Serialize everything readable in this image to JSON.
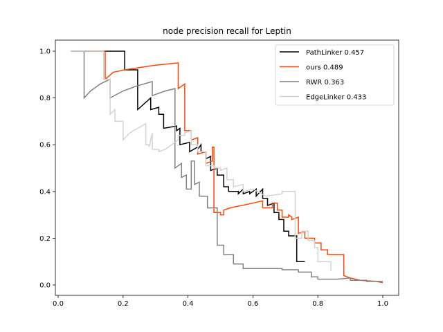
{
  "chart_data": {
    "type": "line",
    "title": "node precision recall for Leptin",
    "xlabel": "",
    "ylabel": "",
    "xlim": [
      0.0,
      1.0
    ],
    "ylim": [
      0.0,
      1.0
    ],
    "xticks": [
      0.0,
      0.2,
      0.4,
      0.6,
      0.8,
      1.0
    ],
    "yticks": [
      0.0,
      0.2,
      0.4,
      0.6,
      0.8,
      1.0
    ],
    "xtick_labels": [
      "0.0",
      "0.2",
      "0.4",
      "0.6",
      "0.8",
      "1.0"
    ],
    "ytick_labels": [
      "0.0",
      "0.2",
      "0.4",
      "0.6",
      "0.8",
      "1.0"
    ],
    "grid": false,
    "legend_position": "top-right",
    "series": [
      {
        "name": "PathLinker 0.457",
        "color": "#000000",
        "points": [
          [
            0.04,
            1.0
          ],
          [
            0.205,
            1.0
          ],
          [
            0.205,
            0.92
          ],
          [
            0.245,
            0.92
          ],
          [
            0.245,
            0.75
          ],
          [
            0.285,
            0.8
          ],
          [
            0.285,
            0.75
          ],
          [
            0.31,
            0.76
          ],
          [
            0.31,
            0.73
          ],
          [
            0.325,
            0.73
          ],
          [
            0.325,
            0.67
          ],
          [
            0.365,
            0.68
          ],
          [
            0.365,
            0.66
          ],
          [
            0.375,
            0.67
          ],
          [
            0.375,
            0.6
          ],
          [
            0.405,
            0.61
          ],
          [
            0.405,
            0.57
          ],
          [
            0.43,
            0.59
          ],
          [
            0.43,
            0.58
          ],
          [
            0.44,
            0.6
          ],
          [
            0.44,
            0.57
          ],
          [
            0.455,
            0.57
          ],
          [
            0.455,
            0.54
          ],
          [
            0.47,
            0.55
          ],
          [
            0.47,
            0.49
          ],
          [
            0.49,
            0.5
          ],
          [
            0.49,
            0.47
          ],
          [
            0.51,
            0.47
          ],
          [
            0.51,
            0.42
          ],
          [
            0.525,
            0.42
          ],
          [
            0.525,
            0.4
          ],
          [
            0.555,
            0.4
          ],
          [
            0.555,
            0.39
          ],
          [
            0.57,
            0.41
          ],
          [
            0.57,
            0.39
          ],
          [
            0.59,
            0.4
          ],
          [
            0.59,
            0.39
          ],
          [
            0.61,
            0.41
          ],
          [
            0.61,
            0.38
          ],
          [
            0.63,
            0.41
          ],
          [
            0.63,
            0.37
          ],
          [
            0.645,
            0.37
          ],
          [
            0.645,
            0.34
          ],
          [
            0.665,
            0.35
          ],
          [
            0.665,
            0.31
          ],
          [
            0.68,
            0.31
          ],
          [
            0.68,
            0.28
          ],
          [
            0.695,
            0.28
          ],
          [
            0.695,
            0.23
          ],
          [
            0.71,
            0.23
          ],
          [
            0.71,
            0.21
          ],
          [
            0.735,
            0.21
          ],
          [
            0.735,
            0.1
          ],
          [
            0.76,
            0.1
          ]
        ]
      },
      {
        "name": "ours 0.489",
        "color": "#ff4500",
        "points": [
          [
            0.04,
            1.0
          ],
          [
            0.145,
            1.0
          ],
          [
            0.145,
            0.88
          ],
          [
            0.17,
            0.91
          ],
          [
            0.205,
            0.92
          ],
          [
            0.25,
            0.93
          ],
          [
            0.3,
            0.94
          ],
          [
            0.37,
            0.95
          ],
          [
            0.37,
            0.84
          ],
          [
            0.39,
            0.86
          ],
          [
            0.39,
            0.66
          ],
          [
            0.41,
            0.66
          ],
          [
            0.41,
            0.62
          ],
          [
            0.43,
            0.63
          ],
          [
            0.43,
            0.56
          ],
          [
            0.455,
            0.57
          ],
          [
            0.455,
            0.52
          ],
          [
            0.475,
            0.53
          ],
          [
            0.475,
            0.59
          ],
          [
            0.48,
            0.59
          ],
          [
            0.48,
            0.31
          ],
          [
            0.5,
            0.31
          ],
          [
            0.5,
            0.3
          ],
          [
            0.51,
            0.3
          ],
          [
            0.51,
            0.32
          ],
          [
            0.53,
            0.33
          ],
          [
            0.6,
            0.35
          ],
          [
            0.63,
            0.36
          ],
          [
            0.63,
            0.33
          ],
          [
            0.66,
            0.33
          ],
          [
            0.66,
            0.35
          ],
          [
            0.675,
            0.35
          ],
          [
            0.675,
            0.32
          ],
          [
            0.69,
            0.32
          ],
          [
            0.69,
            0.29
          ],
          [
            0.71,
            0.29
          ],
          [
            0.71,
            0.3
          ],
          [
            0.72,
            0.29
          ],
          [
            0.72,
            0.28
          ],
          [
            0.74,
            0.29
          ],
          [
            0.74,
            0.22
          ],
          [
            0.76,
            0.23
          ],
          [
            0.76,
            0.2
          ],
          [
            0.79,
            0.2
          ],
          [
            0.79,
            0.18
          ],
          [
            0.81,
            0.18
          ],
          [
            0.81,
            0.15
          ],
          [
            0.83,
            0.15
          ],
          [
            0.83,
            0.13
          ],
          [
            0.88,
            0.13
          ],
          [
            0.88,
            0.04
          ],
          [
            0.9,
            0.03
          ],
          [
            0.93,
            0.02
          ],
          [
            0.98,
            0.015
          ],
          [
            1.0,
            0.01
          ]
        ]
      },
      {
        "name": "RWR 0.363",
        "color": "#808080",
        "points": [
          [
            0.04,
            1.0
          ],
          [
            0.08,
            1.0
          ],
          [
            0.08,
            0.8
          ],
          [
            0.1,
            0.83
          ],
          [
            0.13,
            0.86
          ],
          [
            0.16,
            0.88
          ],
          [
            0.16,
            0.8
          ],
          [
            0.2,
            0.83
          ],
          [
            0.24,
            0.85
          ],
          [
            0.29,
            0.87
          ],
          [
            0.29,
            0.81
          ],
          [
            0.33,
            0.83
          ],
          [
            0.36,
            0.84
          ],
          [
            0.36,
            0.5
          ],
          [
            0.38,
            0.52
          ],
          [
            0.38,
            0.46
          ],
          [
            0.395,
            0.47
          ],
          [
            0.395,
            0.41
          ],
          [
            0.41,
            0.41
          ],
          [
            0.41,
            0.53
          ],
          [
            0.42,
            0.53
          ],
          [
            0.42,
            0.43
          ],
          [
            0.435,
            0.44
          ],
          [
            0.435,
            0.38
          ],
          [
            0.46,
            0.38
          ],
          [
            0.46,
            0.33
          ],
          [
            0.49,
            0.33
          ],
          [
            0.49,
            0.17
          ],
          [
            0.51,
            0.17
          ],
          [
            0.51,
            0.13
          ],
          [
            0.54,
            0.13
          ],
          [
            0.54,
            0.09
          ],
          [
            0.57,
            0.09
          ],
          [
            0.57,
            0.07
          ],
          [
            0.6,
            0.07
          ],
          [
            0.65,
            0.07
          ],
          [
            0.69,
            0.07
          ],
          [
            0.69,
            0.065
          ],
          [
            0.74,
            0.065
          ],
          [
            0.74,
            0.055
          ],
          [
            0.78,
            0.055
          ],
          [
            0.78,
            0.035
          ],
          [
            0.8,
            0.035
          ],
          [
            0.8,
            0.025
          ],
          [
            0.86,
            0.025
          ],
          [
            0.9,
            0.03
          ],
          [
            0.9,
            0.02
          ],
          [
            0.95,
            0.02
          ],
          [
            0.95,
            0.015
          ],
          [
            1.0,
            0.015
          ]
        ]
      },
      {
        "name": "EdgeLinker 0.433",
        "color": "#d3d3d3",
        "points": [
          [
            0.04,
            1.0
          ],
          [
            0.14,
            1.0
          ],
          [
            0.14,
            0.88
          ],
          [
            0.16,
            0.88
          ],
          [
            0.16,
            0.73
          ],
          [
            0.175,
            0.75
          ],
          [
            0.175,
            0.7
          ],
          [
            0.2,
            0.7
          ],
          [
            0.2,
            0.62
          ],
          [
            0.22,
            0.65
          ],
          [
            0.27,
            0.69
          ],
          [
            0.27,
            0.6
          ],
          [
            0.28,
            0.6
          ],
          [
            0.28,
            0.59
          ],
          [
            0.29,
            0.65
          ],
          [
            0.29,
            0.58
          ],
          [
            0.31,
            0.58
          ],
          [
            0.31,
            0.57
          ],
          [
            0.33,
            0.58
          ],
          [
            0.37,
            0.62
          ],
          [
            0.37,
            0.64
          ],
          [
            0.39,
            0.64
          ],
          [
            0.39,
            0.65
          ],
          [
            0.41,
            0.66
          ],
          [
            0.41,
            0.6
          ],
          [
            0.43,
            0.6
          ],
          [
            0.43,
            0.57
          ],
          [
            0.455,
            0.57
          ],
          [
            0.455,
            0.51
          ],
          [
            0.48,
            0.51
          ],
          [
            0.48,
            0.5
          ],
          [
            0.5,
            0.5
          ],
          [
            0.5,
            0.49
          ],
          [
            0.52,
            0.5
          ],
          [
            0.52,
            0.45
          ],
          [
            0.54,
            0.45
          ],
          [
            0.54,
            0.42
          ],
          [
            0.57,
            0.43
          ],
          [
            0.57,
            0.4
          ],
          [
            0.6,
            0.41
          ],
          [
            0.64,
            0.38
          ],
          [
            0.69,
            0.39
          ],
          [
            0.69,
            0.4
          ],
          [
            0.73,
            0.4
          ],
          [
            0.73,
            0.2
          ],
          [
            0.75,
            0.2
          ],
          [
            0.75,
            0.23
          ],
          [
            0.77,
            0.23
          ],
          [
            0.77,
            0.19
          ],
          [
            0.79,
            0.19
          ],
          [
            0.79,
            0.16
          ],
          [
            0.8,
            0.16
          ],
          [
            0.8,
            0.1
          ],
          [
            0.84,
            0.1
          ],
          [
            0.84,
            0.06
          ]
        ]
      }
    ]
  }
}
